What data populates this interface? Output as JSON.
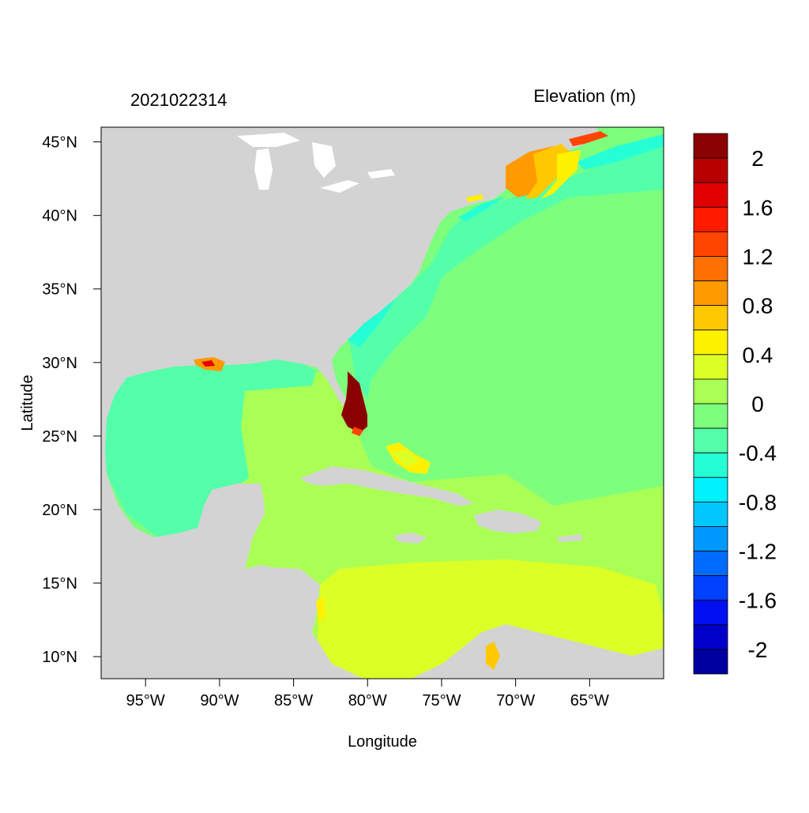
{
  "timestamp": "2021022314",
  "variable_label": "Elevation (m)",
  "axes": {
    "xlabel": "Longitude",
    "ylabel": "Latitude",
    "x_ticks": [
      "95°W",
      "90°W",
      "85°W",
      "80°W",
      "75°W",
      "70°W",
      "65°W"
    ],
    "y_ticks": [
      "45°N",
      "40°N",
      "35°N",
      "30°N",
      "25°N",
      "20°N",
      "15°N",
      "10°N"
    ],
    "x_range_deg": [
      -98,
      -60
    ],
    "y_range_deg": [
      8.5,
      46
    ]
  },
  "colorbar": {
    "range": [
      -2.2,
      2.2
    ],
    "step": 0.2,
    "labels": [
      "2",
      "1.6",
      "1.2",
      "0.8",
      "0.4",
      "0",
      "-0.4",
      "-0.8",
      "-1.2",
      "-1.6",
      "-2"
    ],
    "colors": [
      "#8b0000",
      "#b80000",
      "#e00000",
      "#ff1a00",
      "#ff4500",
      "#ff7000",
      "#ff9a00",
      "#ffc800",
      "#fff200",
      "#dcff26",
      "#aaff55",
      "#7dff7d",
      "#55ffaa",
      "#26ffd5",
      "#00f0ff",
      "#00c8ff",
      "#009aff",
      "#006cff",
      "#0040ff",
      "#0010f0",
      "#0000c8",
      "#0000a0"
    ]
  },
  "map": {
    "land_color": "#d3d3d3",
    "regions": [
      {
        "name": "gulf-of-mexico",
        "value_range": "-0.4 to -0.2",
        "color": "#55ffaa"
      },
      {
        "name": "north-atlantic",
        "value_range": "-0.2 to 0",
        "color": "#7dff7d"
      },
      {
        "name": "us-east-coastal-shelf",
        "value_range": "-0.4 to -0.2",
        "color": "#55ffaa"
      },
      {
        "name": "caribbean-north",
        "value_range": "0 to 0.2",
        "color": "#aaff55"
      },
      {
        "name": "caribbean-south",
        "value_range": "0.2 to 0.4",
        "color": "#dcff26"
      },
      {
        "name": "gulf-of-maine-high",
        "value_range": "0.6 to 1.2",
        "color": "#ff9a00"
      },
      {
        "name": "south-florida-surge",
        "value_range": "above 2",
        "color": "#8b0000"
      }
    ]
  }
}
